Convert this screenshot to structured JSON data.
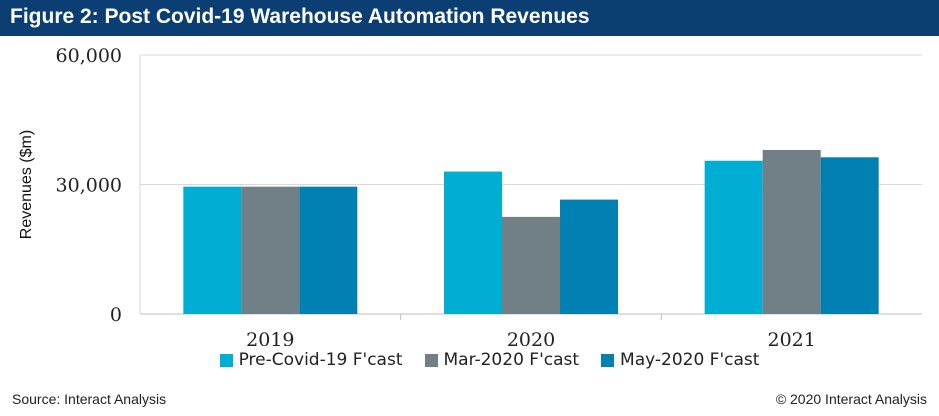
{
  "header": {
    "title": "Figure 2: Post Covid-19 Warehouse Automation Revenues"
  },
  "chart_data": {
    "type": "bar",
    "title": "Figure 2: Post Covid-19 Warehouse Automation Revenues",
    "xlabel": "",
    "ylabel": "Revenues ($m)",
    "categories": [
      "2019",
      "2020",
      "2021"
    ],
    "ylim": [
      0,
      60000
    ],
    "yticks": [
      "0",
      "30,000",
      "60,000"
    ],
    "grid": true,
    "legend_position": "bottom",
    "series": [
      {
        "name": "Pre-Covid-19 F'cast",
        "color": "#00aed4",
        "values": [
          29500,
          33000,
          35500
        ]
      },
      {
        "name": "Mar-2020 F'cast",
        "color": "#717f87",
        "values": [
          29500,
          22500,
          38000
        ]
      },
      {
        "name": "May-2020 F'cast",
        "color": "#0080b3",
        "values": [
          29500,
          26500,
          36300
        ]
      }
    ]
  },
  "footer": {
    "source": "Source: Interact Analysis",
    "copyright": "© 2020 Interact Analysis"
  }
}
